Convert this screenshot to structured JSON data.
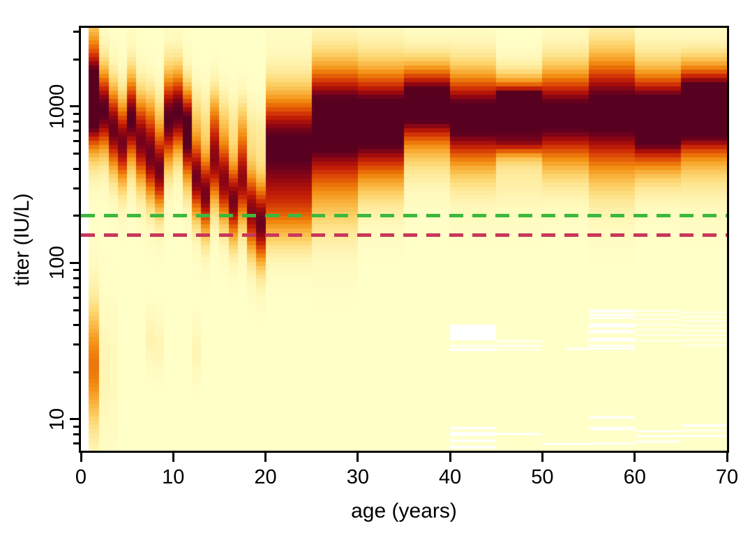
{
  "figure": {
    "kind": "density heatmap of antibody titer by age",
    "x_axis_title": "age (years)",
    "y_axis_title": "titer (IU/L)"
  },
  "chart_data": {
    "type": "heatmap",
    "title": "",
    "xlabel": "age (years)",
    "ylabel": "titer (IU/L)",
    "x_axis": {
      "range": [
        0,
        70
      ],
      "ticks": [
        0,
        10,
        20,
        30,
        40,
        50,
        60,
        70
      ]
    },
    "y_axis": {
      "scale": "log10",
      "range": [
        6.3,
        3185
      ],
      "major_ticks": [
        10,
        100,
        1000
      ],
      "minor_tick_mantissas": [
        2,
        3,
        4,
        5,
        6,
        7,
        8,
        9
      ]
    },
    "grid": "off",
    "legend": "none",
    "threshold_lines": [
      {
        "name": "upper-threshold",
        "titer": 200,
        "color": "#3CB93C",
        "style": "dashed"
      },
      {
        "name": "lower-threshold",
        "titer": 150,
        "color": "#C9375A",
        "style": "dashed"
      }
    ],
    "colors": {
      "background": "#FFFFC8",
      "no_data": "#FFFFFF",
      "palette": [
        [
          0.0,
          "#FFFFC8"
        ],
        [
          0.1,
          "#FFF7B8"
        ],
        [
          0.22,
          "#FEE897"
        ],
        [
          0.34,
          "#FDD268"
        ],
        [
          0.46,
          "#F9B13C"
        ],
        [
          0.56,
          "#F39114"
        ],
        [
          0.64,
          "#EA6E07"
        ],
        [
          0.72,
          "#DD4A06"
        ],
        [
          0.79,
          "#CC2906"
        ],
        [
          0.85,
          "#B31407"
        ],
        [
          0.9,
          "#960810"
        ],
        [
          0.95,
          "#75021C"
        ],
        [
          1.0,
          "#570020"
        ]
      ]
    },
    "no_data_region": {
      "age": [
        0,
        0.85
      ]
    },
    "columns": [
      {
        "age": [
          0.85,
          2
        ],
        "components": [
          [
            950,
            0.22,
            1.0
          ],
          [
            1900,
            0.25,
            0.5
          ],
          [
            22,
            0.3,
            0.62
          ]
        ]
      },
      {
        "age": [
          2,
          3
        ],
        "components": [
          [
            940,
            0.21,
            1.0
          ],
          [
            20,
            0.3,
            0.12
          ]
        ]
      },
      {
        "age": [
          3,
          4
        ],
        "components": [
          [
            720,
            0.21,
            0.97
          ],
          [
            20,
            0.3,
            0.08
          ]
        ]
      },
      {
        "age": [
          4,
          5
        ],
        "components": [
          [
            590,
            0.21,
            0.95
          ]
        ]
      },
      {
        "age": [
          5,
          6
        ],
        "components": [
          [
            820,
            0.22,
            1.0
          ]
        ]
      },
      {
        "age": [
          6,
          7
        ],
        "components": [
          [
            610,
            0.22,
            0.95
          ]
        ]
      },
      {
        "age": [
          7,
          8
        ],
        "components": [
          [
            470,
            0.21,
            0.93
          ],
          [
            950,
            0.15,
            0.22
          ],
          [
            33,
            0.13,
            0.13
          ]
        ]
      },
      {
        "age": [
          8,
          9
        ],
        "components": [
          [
            390,
            0.2,
            0.95
          ],
          [
            900,
            0.15,
            0.18
          ],
          [
            30,
            0.13,
            0.11
          ]
        ]
      },
      {
        "age": [
          9,
          10
        ],
        "components": [
          [
            830,
            0.23,
            1.0
          ]
        ]
      },
      {
        "age": [
          10,
          11
        ],
        "components": [
          [
            920,
            0.21,
            1.0
          ]
        ]
      },
      {
        "age": [
          11,
          12
        ],
        "components": [
          [
            600,
            0.22,
            0.92
          ],
          [
            950,
            0.15,
            0.28
          ]
        ]
      },
      {
        "age": [
          12,
          13
        ],
        "components": [
          [
            350,
            0.2,
            0.95
          ],
          [
            900,
            0.15,
            0.22
          ],
          [
            27,
            0.13,
            0.11
          ]
        ]
      },
      {
        "age": [
          13,
          14
        ],
        "components": [
          [
            275,
            0.2,
            0.95
          ],
          [
            800,
            0.15,
            0.2
          ]
        ]
      },
      {
        "age": [
          14,
          15
        ],
        "components": [
          [
            450,
            0.22,
            0.9
          ],
          [
            950,
            0.14,
            0.24
          ]
        ]
      },
      {
        "age": [
          15,
          16
        ],
        "components": [
          [
            335,
            0.21,
            0.92
          ],
          [
            850,
            0.14,
            0.2
          ]
        ]
      },
      {
        "age": [
          16,
          17
        ],
        "components": [
          [
            250,
            0.2,
            0.95
          ],
          [
            760,
            0.14,
            0.18
          ]
        ]
      },
      {
        "age": [
          17,
          18
        ],
        "components": [
          [
            340,
            0.22,
            0.9
          ],
          [
            800,
            0.14,
            0.22
          ]
        ]
      },
      {
        "age": [
          18,
          19
        ],
        "components": [
          [
            215,
            0.21,
            0.92
          ],
          [
            700,
            0.14,
            0.18
          ]
        ]
      },
      {
        "age": [
          19,
          20
        ],
        "components": [
          [
            180,
            0.21,
            0.97
          ],
          [
            640,
            0.14,
            0.18
          ]
        ]
      },
      {
        "age": [
          20,
          25
        ],
        "components": [
          [
            580,
            0.26,
            1.0
          ],
          [
            210,
            0.18,
            0.45
          ]
        ]
      },
      {
        "age": [
          25,
          30
        ],
        "components": [
          [
            900,
            0.26,
            1.0
          ],
          [
            340,
            0.28,
            0.42
          ]
        ]
      },
      {
        "age": [
          30,
          35
        ],
        "components": [
          [
            900,
            0.24,
            1.0
          ],
          [
            430,
            0.22,
            0.35
          ]
        ]
      },
      {
        "age": [
          35,
          40
        ],
        "components": [
          [
            1100,
            0.18,
            1.0
          ],
          [
            600,
            0.2,
            0.3
          ]
        ]
      },
      {
        "age": [
          40,
          45
        ],
        "components": [
          [
            890,
            0.22,
            1.0
          ],
          [
            460,
            0.22,
            0.18
          ]
        ]
      },
      {
        "age": [
          45,
          50
        ],
        "components": [
          [
            930,
            0.09,
            1.0
          ],
          [
            590,
            0.07,
            0.62
          ],
          [
            1150,
            0.13,
            0.6
          ],
          [
            430,
            0.2,
            0.2
          ]
        ]
      },
      {
        "age": [
          50,
          55
        ],
        "components": [
          [
            910,
            0.22,
            1.0
          ],
          [
            460,
            0.2,
            0.16
          ]
        ]
      },
      {
        "age": [
          55,
          60
        ],
        "components": [
          [
            980,
            0.27,
            1.0
          ],
          [
            420,
            0.24,
            0.2
          ]
        ]
      },
      {
        "age": [
          60,
          65
        ],
        "components": [
          [
            920,
            0.22,
            1.0
          ],
          [
            560,
            0.2,
            0.35
          ]
        ]
      },
      {
        "age": [
          65,
          70
        ],
        "components": [
          [
            850,
            0.18,
            1.0
          ],
          [
            1350,
            0.16,
            0.5
          ],
          [
            430,
            0.2,
            0.22
          ]
        ]
      }
    ],
    "missing_stripes": [
      {
        "age": [
          40,
          45
        ],
        "titer": [
          31.9,
          40.3
        ]
      },
      {
        "age": [
          40,
          45
        ],
        "titer": [
          29.2,
          29.9
        ]
      },
      {
        "age": [
          40,
          45
        ],
        "titer": [
          27.3,
          28.6
        ]
      },
      {
        "age": [
          40,
          45
        ],
        "titer": [
          8.6,
          8.95
        ]
      },
      {
        "age": [
          40,
          45
        ],
        "titer": [
          7.8,
          8.3
        ]
      },
      {
        "age": [
          40,
          45
        ],
        "titer": [
          7.15,
          7.45
        ]
      },
      {
        "age": [
          40,
          45
        ],
        "titer": [
          6.5,
          6.8
        ]
      },
      {
        "age": [
          45,
          50
        ],
        "titer": [
          31.2,
          31.9
        ]
      },
      {
        "age": [
          45,
          50
        ],
        "titer": [
          29.2,
          29.9
        ]
      },
      {
        "age": [
          45,
          50
        ],
        "titer": [
          27.6,
          28.1
        ]
      },
      {
        "age": [
          45,
          50
        ],
        "titer": [
          7.95,
          8.2
        ]
      },
      {
        "age": [
          52.5,
          60
        ],
        "titer": [
          27.9,
          28.7
        ]
      },
      {
        "age": [
          50,
          55
        ],
        "titer": [
          6.85,
          7.05
        ]
      },
      {
        "age": [
          55,
          60
        ],
        "titer": [
          48.2,
          50.3
        ]
      },
      {
        "age": [
          55,
          60
        ],
        "titer": [
          45.8,
          47.3
        ]
      },
      {
        "age": [
          55,
          60
        ],
        "titer": [
          44.0,
          45.2
        ]
      },
      {
        "age": [
          55,
          60
        ],
        "titer": [
          38.6,
          41.1
        ]
      },
      {
        "age": [
          55,
          60
        ],
        "titer": [
          35.5,
          37.3
        ]
      },
      {
        "age": [
          55,
          60
        ],
        "titer": [
          31.5,
          33.2
        ]
      },
      {
        "age": [
          55,
          60
        ],
        "titer": [
          29.0,
          29.9
        ]
      },
      {
        "age": [
          55,
          60
        ],
        "titer": [
          10.1,
          10.45
        ]
      },
      {
        "age": [
          55,
          60
        ],
        "titer": [
          8.55,
          8.95
        ]
      },
      {
        "age": [
          55,
          60
        ],
        "titer": [
          6.9,
          7.1
        ]
      },
      {
        "age": [
          60,
          65
        ],
        "titer": [
          49.0,
          49.9
        ]
      },
      {
        "age": [
          60,
          65
        ],
        "titer": [
          46.0,
          46.8
        ]
      },
      {
        "age": [
          60,
          65
        ],
        "titer": [
          43.2,
          43.9
        ]
      },
      {
        "age": [
          60,
          65
        ],
        "titer": [
          40.1,
          40.8
        ]
      },
      {
        "age": [
          60,
          65
        ],
        "titer": [
          37.2,
          37.8
        ]
      },
      {
        "age": [
          60,
          65
        ],
        "titer": [
          34.4,
          35.0
        ]
      },
      {
        "age": [
          60,
          65
        ],
        "titer": [
          31.5,
          32.0
        ]
      },
      {
        "age": [
          60,
          65
        ],
        "titer": [
          8.3,
          8.5
        ]
      },
      {
        "age": [
          60,
          65
        ],
        "titer": [
          7.7,
          7.9
        ]
      },
      {
        "age": [
          60,
          65
        ],
        "titer": [
          7.1,
          7.3
        ]
      },
      {
        "age": [
          65,
          70
        ],
        "titer": [
          48.0,
          48.8
        ]
      },
      {
        "age": [
          65,
          70
        ],
        "titer": [
          45.0,
          45.7
        ]
      },
      {
        "age": [
          65,
          70
        ],
        "titer": [
          42.2,
          42.8
        ]
      },
      {
        "age": [
          65,
          70
        ],
        "titer": [
          39.5,
          40.0
        ]
      },
      {
        "age": [
          65,
          70
        ],
        "titer": [
          36.8,
          37.3
        ]
      },
      {
        "age": [
          65,
          70
        ],
        "titer": [
          34.2,
          34.7
        ]
      },
      {
        "age": [
          65,
          70
        ],
        "titer": [
          31.8,
          32.3
        ]
      },
      {
        "age": [
          65,
          70
        ],
        "titer": [
          29.5,
          30.0
        ]
      },
      {
        "age": [
          65,
          70
        ],
        "titer": [
          9.0,
          9.3
        ]
      },
      {
        "age": [
          65,
          70
        ],
        "titer": [
          8.4,
          8.6
        ]
      },
      {
        "age": [
          65,
          70
        ],
        "titer": [
          7.7,
          7.95
        ]
      }
    ]
  }
}
